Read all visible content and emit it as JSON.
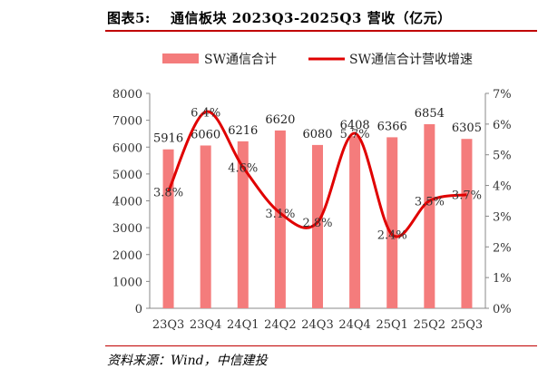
{
  "figure": {
    "label": "图表5:",
    "title": "通信板块 2023Q3-2025Q3 营收（亿元）",
    "source": "资料来源：Wind，中信建投"
  },
  "chart_data": {
    "type": "bar",
    "categories": [
      "23Q3",
      "23Q4",
      "24Q1",
      "24Q2",
      "24Q3",
      "24Q4",
      "25Q1",
      "25Q2",
      "25Q3"
    ],
    "series": [
      {
        "name": "SW通信合计",
        "type": "bar",
        "axis": "left",
        "values": [
          5916,
          6060,
          6216,
          6620,
          6080,
          6408,
          6366,
          6854,
          6305
        ],
        "labels": [
          "5916",
          "6060",
          "6216",
          "6620",
          "6080",
          "6408",
          "6366",
          "6854",
          "6305"
        ],
        "color": "#f47c7c"
      },
      {
        "name": "SW通信合计营收增速",
        "type": "line",
        "axis": "right",
        "values": [
          3.8,
          6.4,
          4.6,
          3.1,
          2.8,
          5.7,
          2.4,
          3.5,
          3.7
        ],
        "labels": [
          "3.8%",
          "6.4%",
          "4.6%",
          "3.1%",
          "2.8%",
          "5.7%",
          "2.4%",
          "3.5%",
          "3.7%"
        ],
        "color": "#e00000"
      }
    ],
    "y_left": {
      "range": [
        0,
        8000
      ],
      "ticks": [
        "0",
        "1000",
        "2000",
        "3000",
        "4000",
        "5000",
        "6000",
        "7000",
        "8000"
      ]
    },
    "y_right": {
      "range": [
        0,
        7
      ],
      "ticks": [
        "0%",
        "1%",
        "2%",
        "3%",
        "4%",
        "5%",
        "6%",
        "7%"
      ]
    },
    "grid": false,
    "legend_position": "top"
  }
}
